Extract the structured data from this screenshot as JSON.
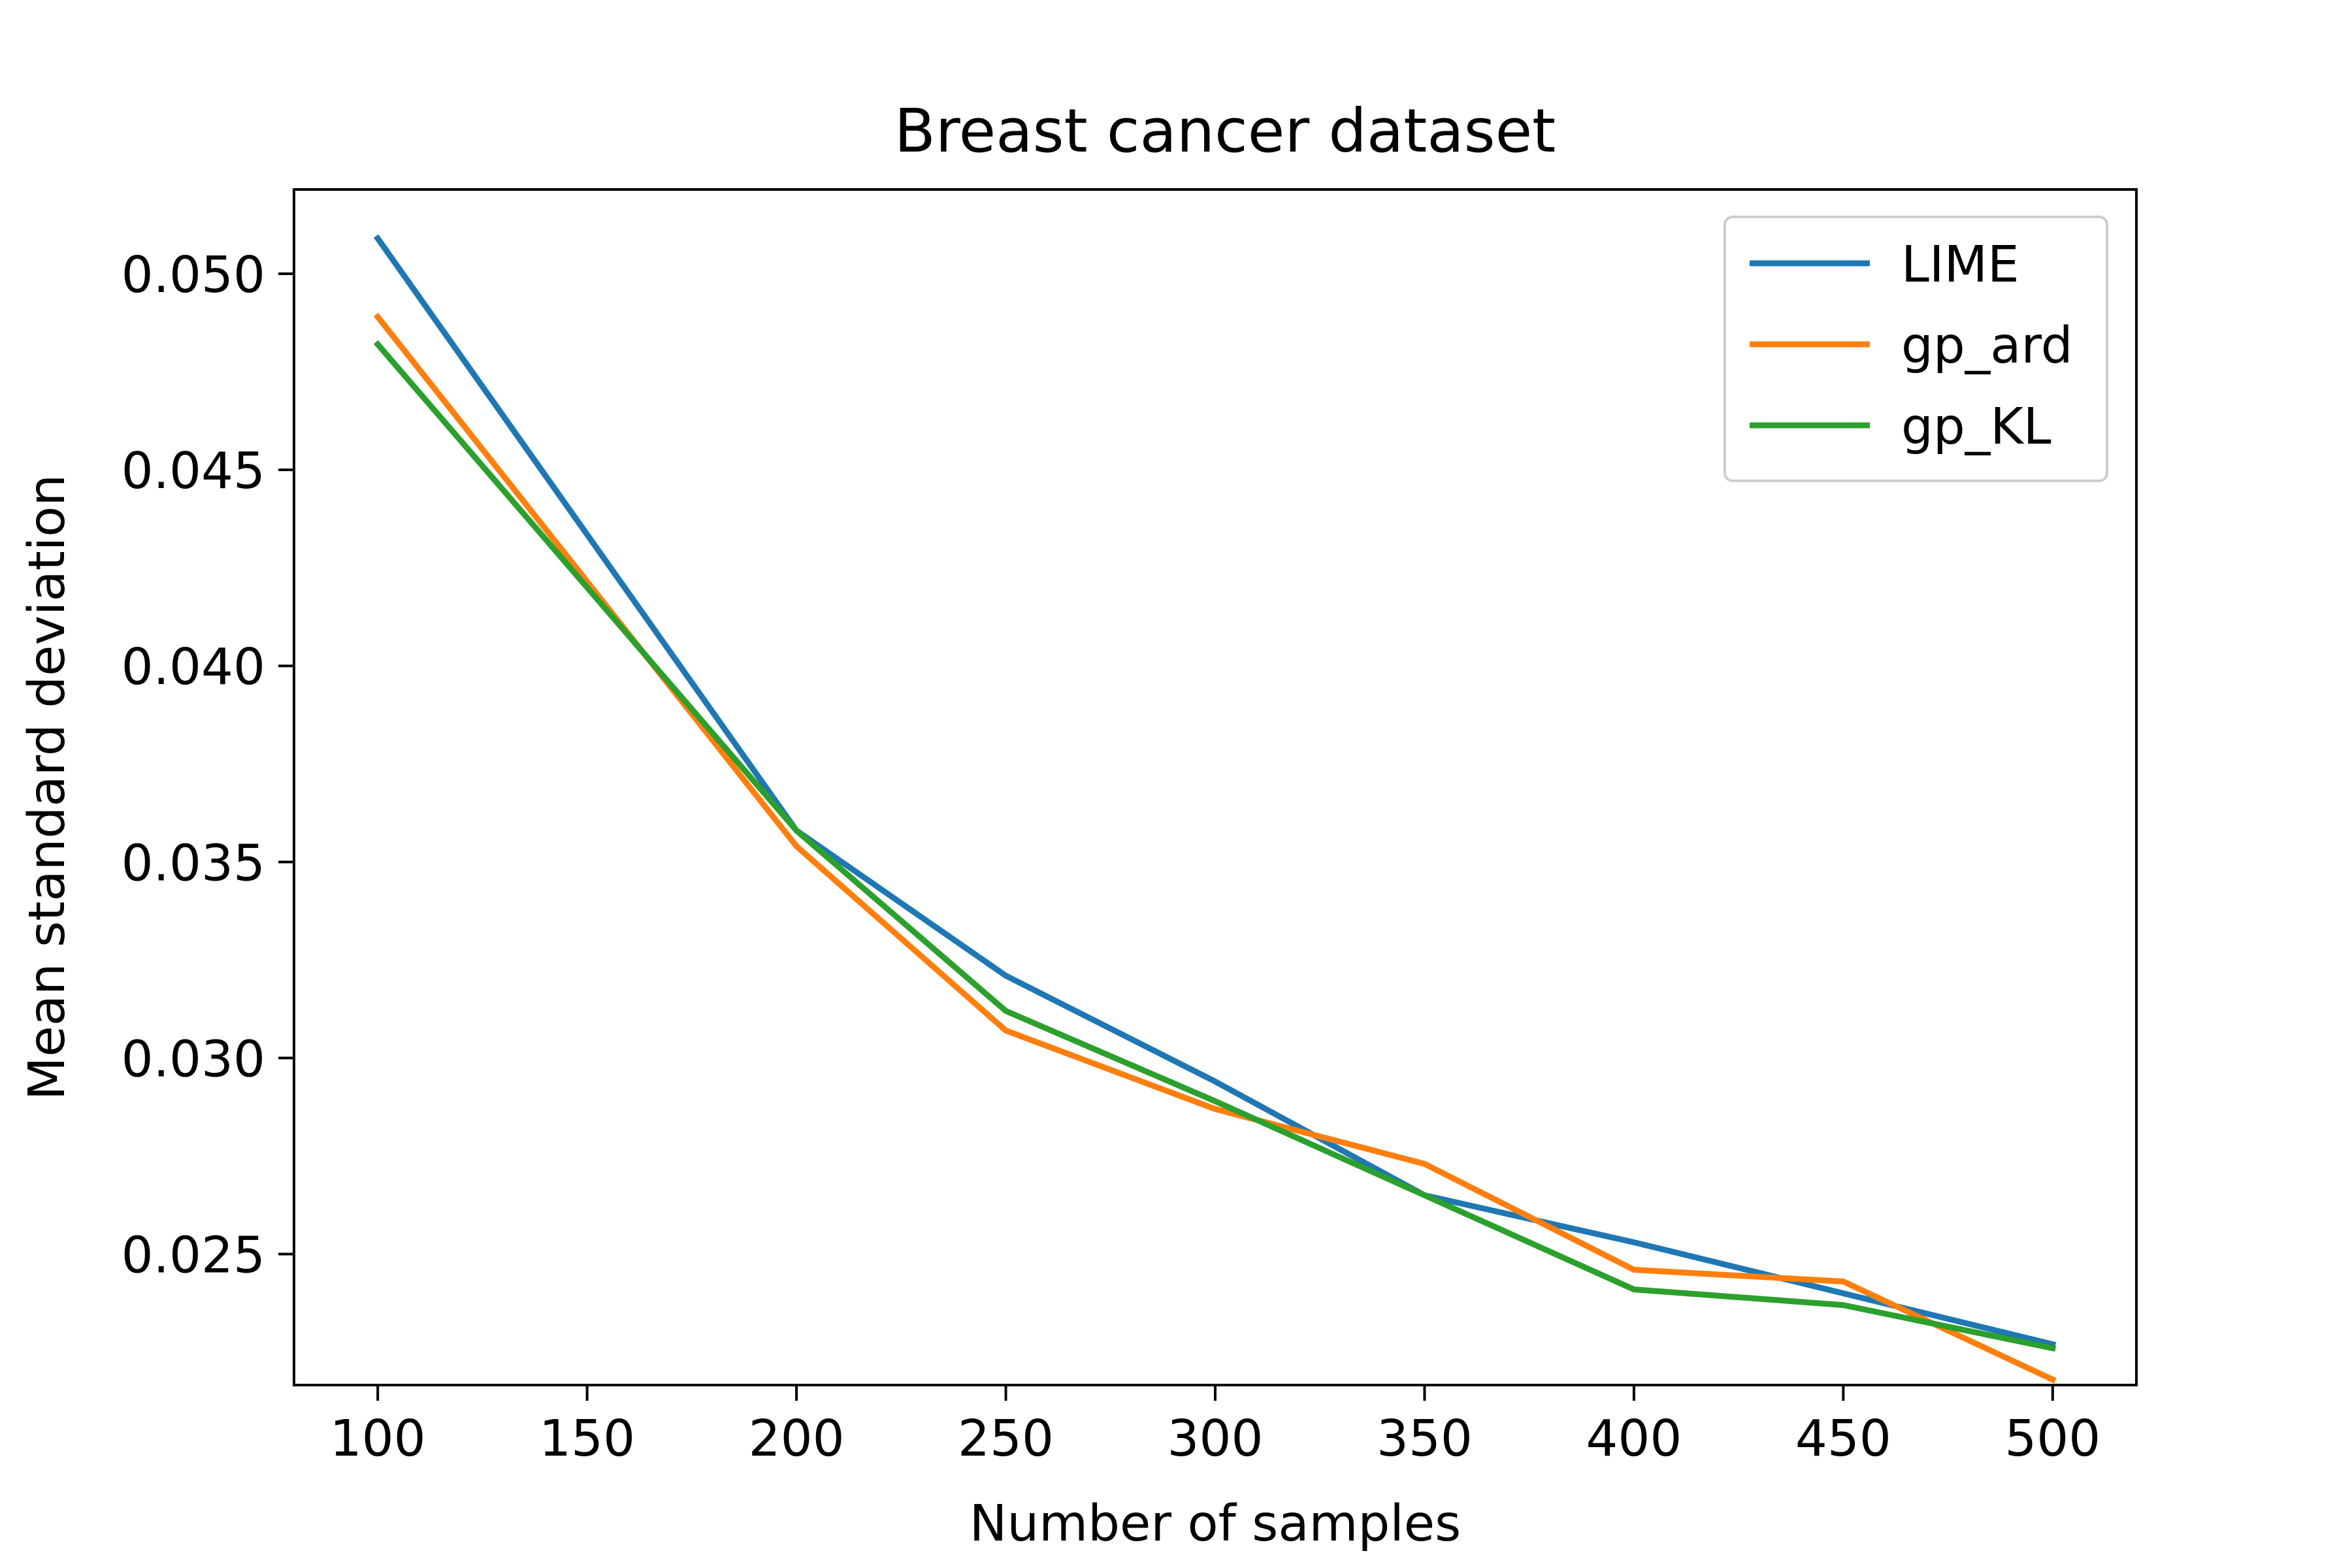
{
  "chart_data": {
    "type": "line",
    "title": "Breast cancer dataset",
    "xlabel": "Number of samples",
    "ylabel": "Mean standard deviation",
    "x": [
      100,
      200,
      250,
      300,
      350,
      400,
      450,
      500
    ],
    "xticks": [
      "100",
      "150",
      "200",
      "250",
      "300",
      "350",
      "400",
      "450",
      "500"
    ],
    "yticks": [
      "0.025",
      "0.030",
      "0.035",
      "0.040",
      "0.045",
      "0.050"
    ],
    "xlim": [
      80,
      520
    ],
    "ylim": [
      0.02166,
      0.05215
    ],
    "grid": false,
    "legend_position": "top-right",
    "series": [
      {
        "name": "LIME",
        "color": "#1f77b4",
        "values": [
          0.0509,
          0.0358,
          0.0321,
          0.0294,
          0.0265,
          0.0253,
          0.024,
          0.0227
        ]
      },
      {
        "name": "gp_ard",
        "color": "#ff7f0e",
        "values": [
          0.0489,
          0.0354,
          0.0307,
          0.0287,
          0.0273,
          0.0246,
          0.0243,
          0.0218
        ]
      },
      {
        "name": "gp_KL",
        "color": "#2ca02c",
        "values": [
          0.0482,
          0.0358,
          0.0312,
          0.0289,
          0.0265,
          0.0241,
          0.0237,
          0.0226
        ]
      }
    ]
  }
}
